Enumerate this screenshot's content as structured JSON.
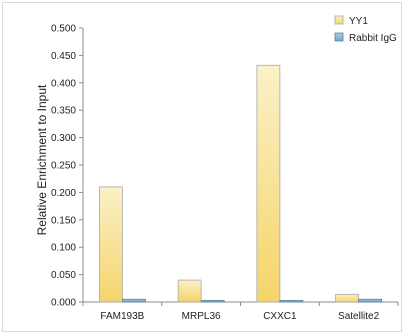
{
  "chart_data": {
    "type": "bar",
    "title": "",
    "xlabel": "",
    "ylabel": "Relative Enrichment to Input",
    "ylim": [
      0,
      0.5
    ],
    "ytick_step": 0.05,
    "ytick_labels": [
      "0.000",
      "0.050",
      "0.100",
      "0.150",
      "0.200",
      "0.250",
      "0.300",
      "0.350",
      "0.400",
      "0.450",
      "0.500"
    ],
    "categories": [
      "FAM193B",
      "MRPL36",
      "CXXC1",
      "Satellite2"
    ],
    "series": [
      {
        "name": "YY1",
        "values": [
          0.21,
          0.04,
          0.432,
          0.014
        ],
        "color_top": "#fbf1c8",
        "color_bottom": "#f5d46a",
        "stroke": "#a8a8a8"
      },
      {
        "name": "Rabbit IgG",
        "values": [
          0.005,
          0.003,
          0.003,
          0.005
        ],
        "color_top": "#a9cde6",
        "color_bottom": "#6fa6cf",
        "stroke": "#5b7f99"
      }
    ],
    "grid": false,
    "legend_position": "top-right"
  }
}
